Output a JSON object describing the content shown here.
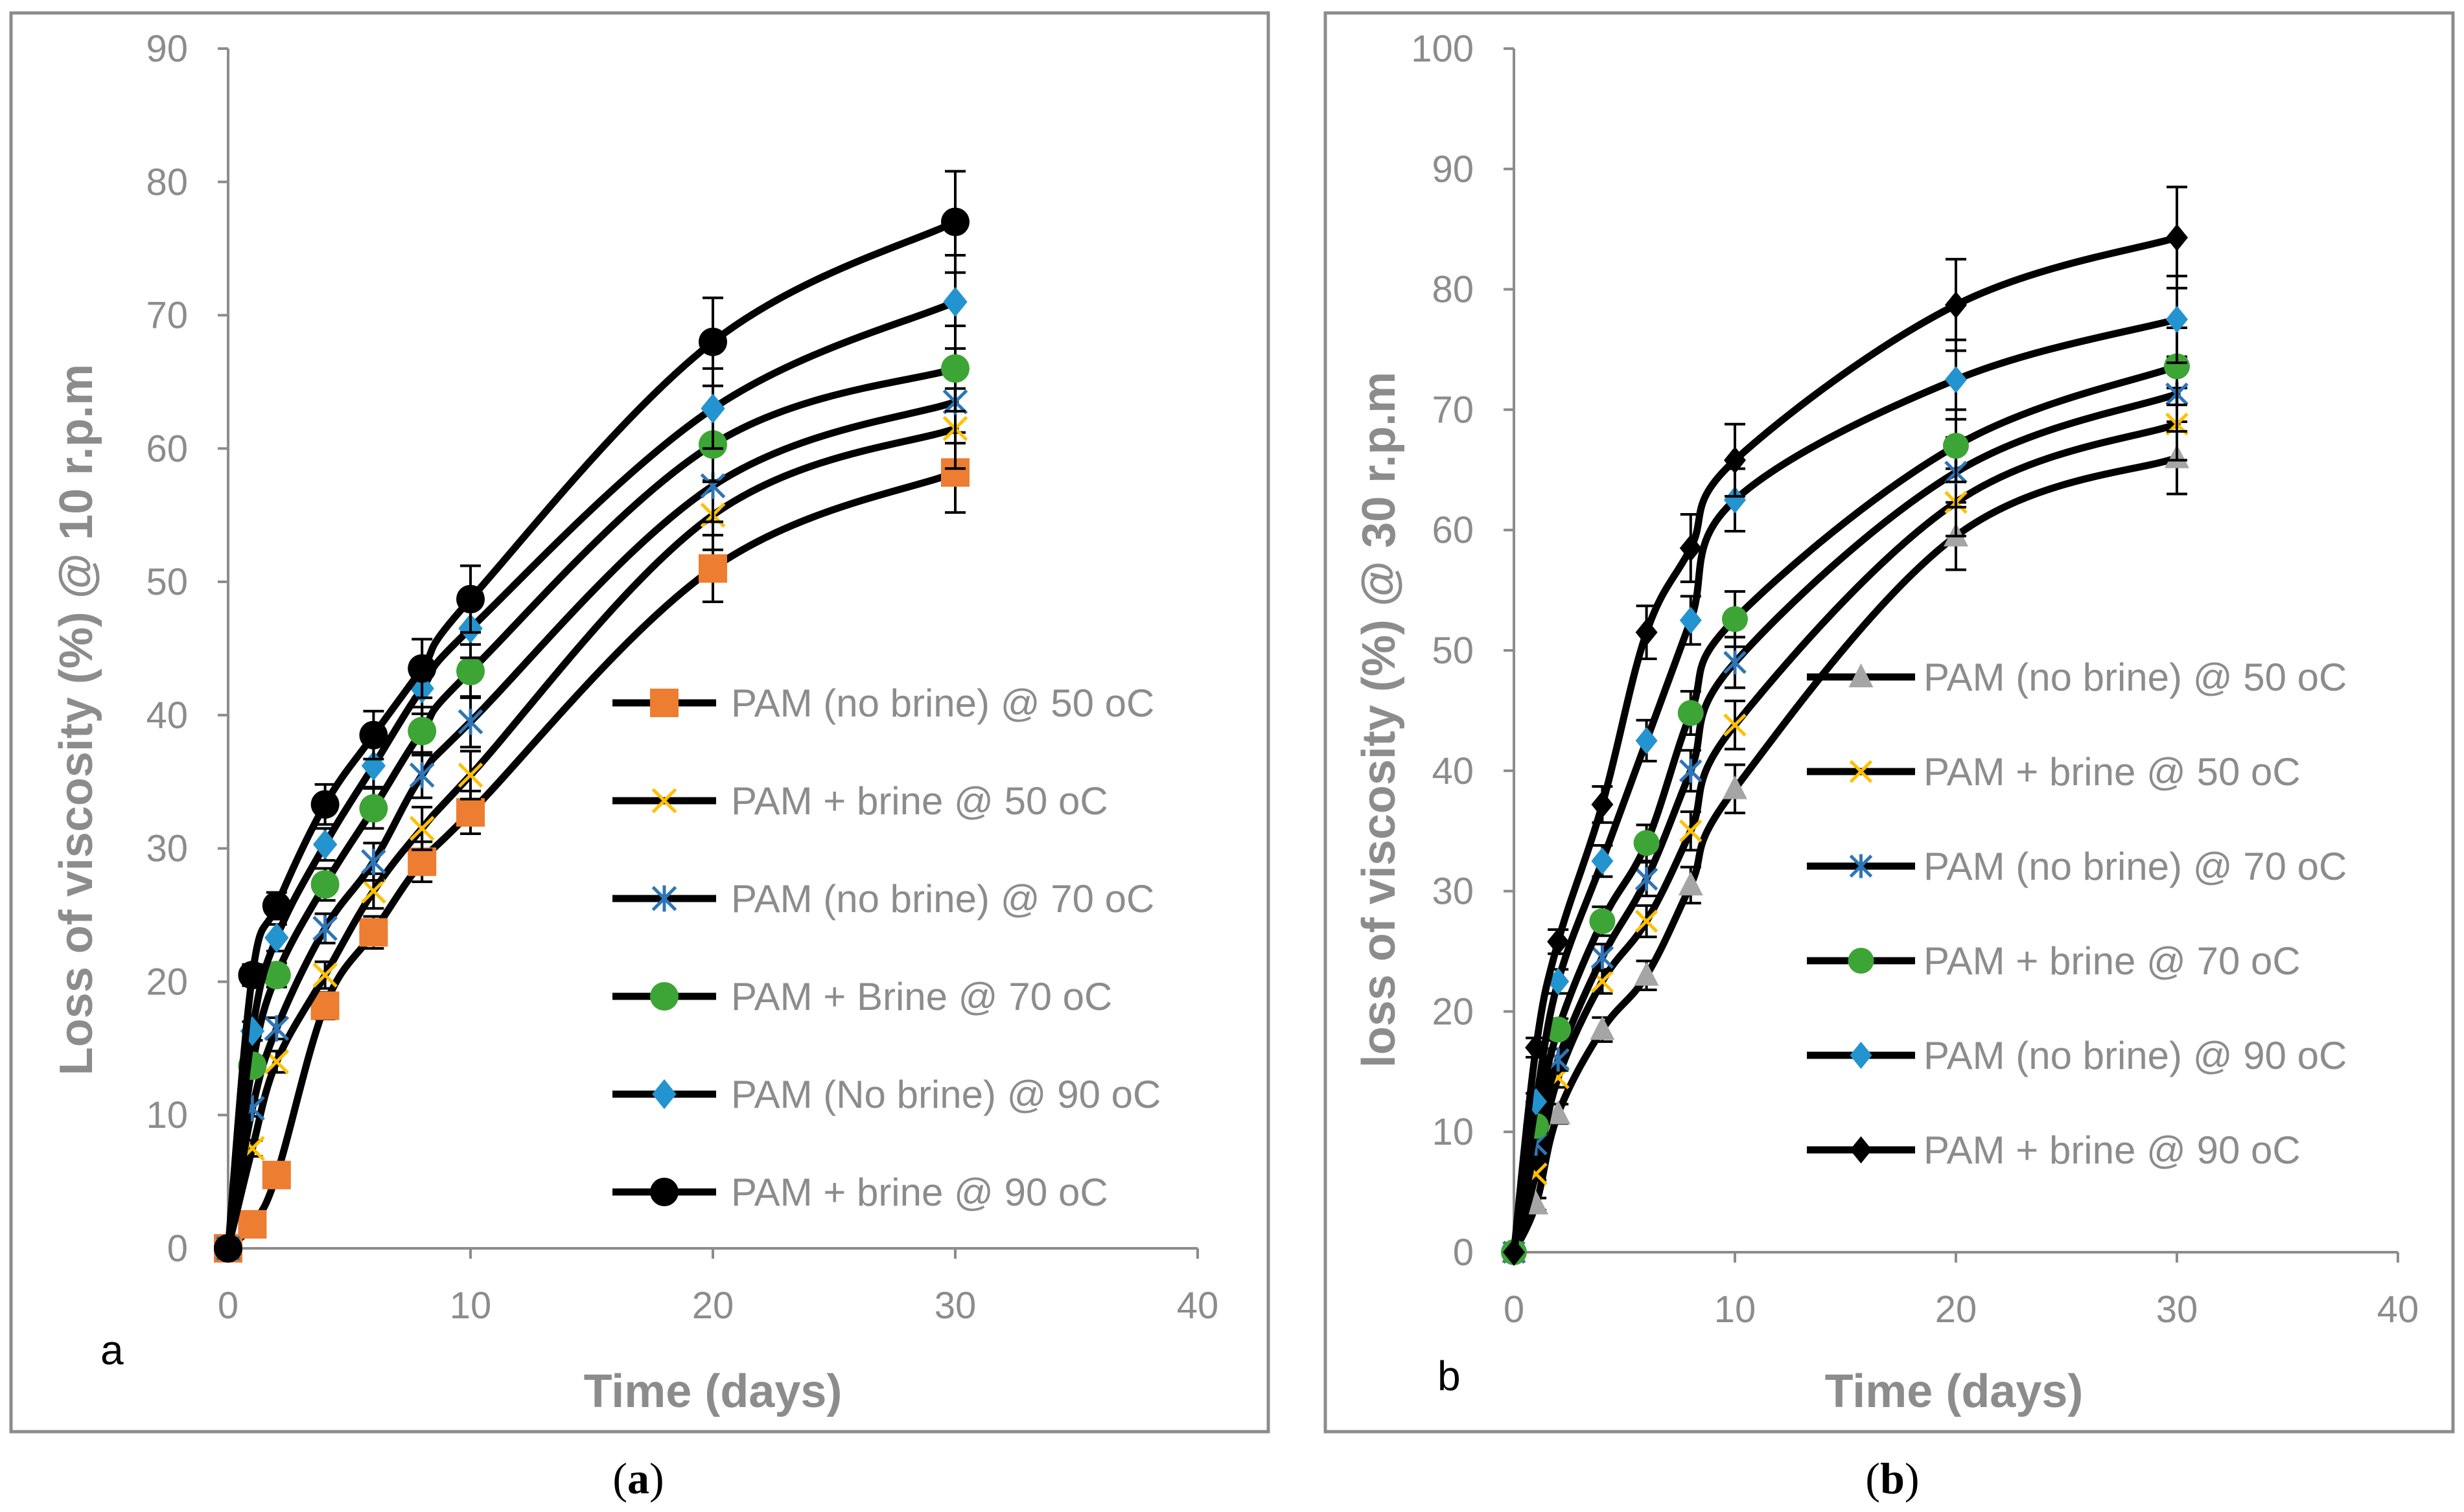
{
  "charts": [
    {
      "chart_data": {
        "type": "line",
        "title": "",
        "panel_letter": "a",
        "caption_letter": "a",
        "xlabel": "Time (days)",
        "ylabel": "Loss of viscosity (%) @ 10 r.p.m",
        "xlim": [
          0,
          40
        ],
        "ylim": [
          0,
          90
        ],
        "x_ticks": [
          "0",
          "10",
          "20",
          "30",
          "40"
        ],
        "y_ticks": [
          "0",
          "10",
          "20",
          "30",
          "40",
          "50",
          "60",
          "70",
          "80",
          "90"
        ],
        "x": [
          0,
          1,
          2,
          4,
          6,
          8,
          10,
          20,
          30
        ],
        "grid": false,
        "legend_position": "center-right",
        "series": [
          {
            "name": "PAM (no brine) @ 50 oC",
            "marker": "square",
            "color": "#ED7D31",
            "values": [
              0,
              1.8,
              5.5,
              18.2,
              23.7,
              29.0,
              32.7,
              51.0,
              58.2
            ],
            "errors": [
              0,
              0.5,
              0.6,
              1.0,
              1.2,
              1.5,
              1.6,
              2.5,
              3.0
            ]
          },
          {
            "name": "PAM + brine @ 50 oC",
            "marker": "x",
            "color": "#FFC000",
            "values": [
              0,
              7.5,
              14.0,
              20.5,
              26.8,
              31.5,
              35.5,
              55.0,
              61.5
            ],
            "errors": [
              0,
              0.6,
              0.8,
              1.0,
              1.3,
              1.6,
              1.8,
              2.6,
              3.0
            ]
          },
          {
            "name": "PAM (no brine) @ 70 oC",
            "marker": "star",
            "color": "#2E75B6",
            "values": [
              0,
              10.5,
              16.5,
              24.0,
              29.0,
              35.5,
              39.5,
              57.2,
              63.5
            ],
            "errors": [
              0,
              0.6,
              0.8,
              1.1,
              1.4,
              1.7,
              1.9,
              2.7,
              3.1
            ]
          },
          {
            "name": "PAM + Brine @ 70 oC",
            "marker": "circle",
            "color": "#3DA535",
            "values": [
              0,
              13.7,
              20.5,
              27.3,
              33.0,
              38.8,
              43.3,
              60.3,
              66.0
            ],
            "errors": [
              0,
              0.7,
              0.9,
              1.2,
              1.5,
              1.8,
              2.0,
              2.8,
              3.2
            ]
          },
          {
            "name": "PAM (No brine) @ 90 oC",
            "marker": "diamond",
            "color": "#2394CF",
            "values": [
              0,
              16.3,
              23.3,
              30.3,
              36.2,
              42.0,
              46.5,
              63.0,
              71.0
            ],
            "errors": [
              0,
              0.7,
              1.0,
              1.2,
              1.6,
              1.9,
              2.2,
              3.0,
              3.5
            ]
          },
          {
            "name": "PAM + brine @ 90 oC",
            "marker": "circle",
            "color": "#000000",
            "values": [
              0,
              20.5,
              25.7,
              33.3,
              38.5,
              43.5,
              48.7,
              68.0,
              77.0
            ],
            "errors": [
              0,
              0.8,
              1.0,
              1.5,
              1.8,
              2.2,
              2.5,
              3.3,
              3.8
            ]
          }
        ]
      }
    },
    {
      "chart_data": {
        "type": "line",
        "title": "",
        "panel_letter": "b",
        "caption_letter": "b",
        "xlabel": "Time (days)",
        "ylabel": "loss of viscosity (%) @ 30 r.p.m",
        "xlim": [
          0,
          40
        ],
        "ylim": [
          0,
          100
        ],
        "x_ticks": [
          "0",
          "10",
          "20",
          "30",
          "40"
        ],
        "y_ticks": [
          "0",
          "10",
          "20",
          "30",
          "40",
          "50",
          "60",
          "70",
          "80",
          "90",
          "100"
        ],
        "x": [
          0,
          1,
          2,
          4,
          6,
          8,
          10,
          20,
          30
        ],
        "grid": false,
        "legend_position": "center-right",
        "series": [
          {
            "name": "PAM (no brine) @ 50 oC",
            "marker": "triangle",
            "color": "#A5A5A5",
            "values": [
              0,
              4.0,
              11.5,
              18.5,
              23.0,
              30.5,
              38.5,
              59.5,
              66.0
            ],
            "errors": [
              0,
              0.5,
              0.8,
              1.0,
              1.2,
              1.5,
              2.0,
              2.8,
              3.0
            ]
          },
          {
            "name": "PAM + brine @ 50 oC",
            "marker": "x",
            "color": "#FFC000",
            "values": [
              0,
              6.5,
              14.5,
              22.5,
              27.5,
              35.0,
              43.8,
              62.3,
              68.8
            ],
            "errors": [
              0,
              0.5,
              0.8,
              1.0,
              1.3,
              1.6,
              2.0,
              2.8,
              3.0
            ]
          },
          {
            "name": "PAM (no brine) @ 70 oC",
            "marker": "star",
            "color": "#2E75B6",
            "values": [
              0,
              9.0,
              16.0,
              24.5,
              31.0,
              40.0,
              49.0,
              64.8,
              71.3
            ],
            "errors": [
              0,
              0.6,
              0.9,
              1.1,
              1.4,
              1.7,
              2.1,
              2.9,
              3.1
            ]
          },
          {
            "name": "PAM + brine @ 70 oC",
            "marker": "circle",
            "color": "#3DA535",
            "values": [
              0,
              10.5,
              18.5,
              27.5,
              34.0,
              44.8,
              52.6,
              67.0,
              73.6
            ],
            "errors": [
              0,
              0.6,
              0.9,
              1.2,
              1.5,
              1.8,
              2.3,
              3.0,
              3.2
            ]
          },
          {
            "name": "PAM (no brine) @ 90 oC",
            "marker": "diamond",
            "color": "#2394CF",
            "values": [
              0,
              12.5,
              22.5,
              32.5,
              42.5,
              52.5,
              62.5,
              72.5,
              77.5
            ],
            "errors": [
              0,
              0.7,
              1.0,
              1.3,
              1.7,
              2.0,
              2.6,
              3.3,
              3.6
            ]
          },
          {
            "name": "PAM + brine @ 90 oC",
            "marker": "diamond",
            "color": "#000000",
            "values": [
              0,
              17.0,
              25.8,
              37.2,
              51.5,
              58.5,
              65.8,
              78.7,
              84.3
            ],
            "errors": [
              0,
              0.8,
              1.0,
              1.5,
              2.2,
              2.8,
              3.0,
              3.8,
              4.2
            ]
          }
        ]
      }
    }
  ]
}
